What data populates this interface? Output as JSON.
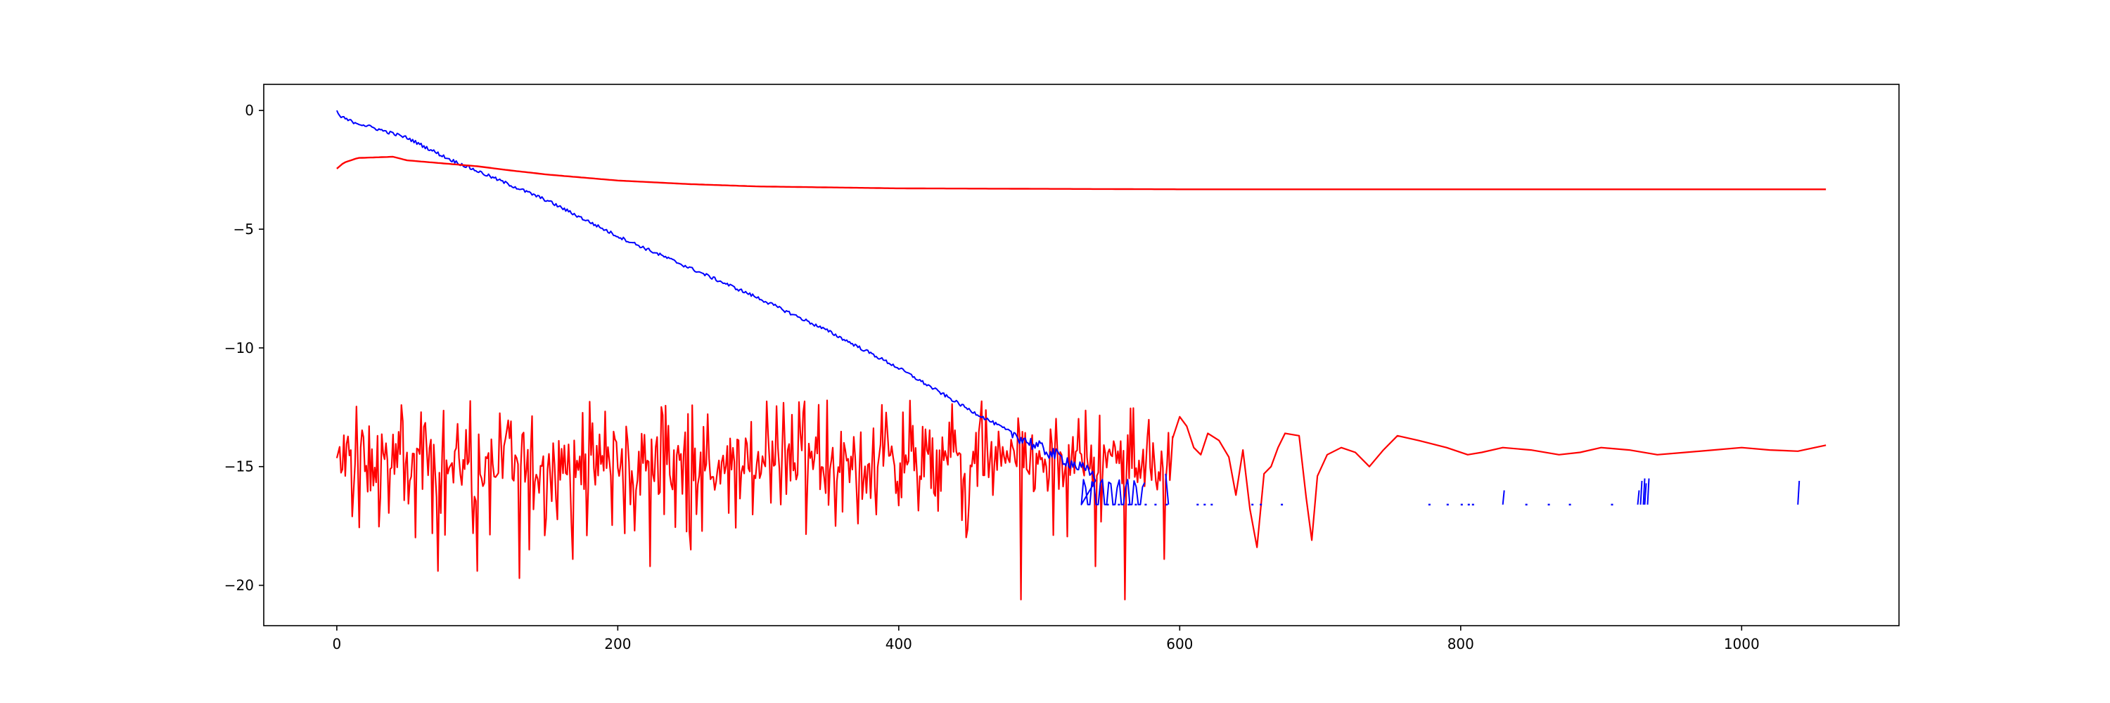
{
  "chart_data": {
    "type": "line",
    "title": "",
    "xlabel": "",
    "ylabel": "",
    "xlim": [
      -52,
      1112
    ],
    "ylim": [
      -21.7,
      1.1
    ],
    "x_ticks": [
      0,
      200,
      400,
      600,
      800,
      1000
    ],
    "y_ticks": [
      0,
      -5,
      -10,
      -15,
      -20
    ],
    "x_tick_labels": [
      "0",
      "200",
      "400",
      "600",
      "800",
      "1000"
    ],
    "y_tick_labels": [
      "0",
      "−5",
      "−10",
      "−15",
      "−20"
    ],
    "grid": false,
    "series": [
      {
        "color": "#0000ff",
        "description_points": [
          [
            0,
            0
          ],
          [
            2,
            -0.25
          ],
          [
            10,
            -0.45
          ],
          [
            30,
            -0.8
          ],
          [
            50,
            -1.15
          ],
          [
            80,
            -2.05
          ],
          [
            100,
            -2.55
          ],
          [
            150,
            -3.8
          ],
          [
            200,
            -5.3
          ],
          [
            250,
            -6.6
          ],
          [
            300,
            -7.9
          ],
          [
            350,
            -9.3
          ],
          [
            400,
            -10.85
          ],
          [
            450,
            -12.6
          ],
          [
            500,
            -14.2
          ],
          [
            520,
            -14.75
          ],
          [
            540,
            -15.4
          ]
        ],
        "floor": -16.6,
        "floor_points": [
          548,
          552,
          556,
          563,
          568,
          575,
          582,
          590,
          612,
          617,
          622,
          651,
          657,
          672,
          777,
          790,
          800,
          805,
          808,
          846,
          862,
          877,
          907
        ],
        "spikes": [
          [
            830,
            -16.0
          ],
          [
            926,
            -16.0
          ],
          [
            928,
            -15.6
          ],
          [
            930,
            -15.5
          ],
          [
            931,
            -15.7
          ],
          [
            933,
            -15.5
          ],
          [
            1040,
            -15.6
          ]
        ]
      },
      {
        "color": "#ff0000",
        "description_points": [
          [
            0,
            -2.45
          ],
          [
            5,
            -2.2
          ],
          [
            15,
            -2.0
          ],
          [
            40,
            -1.95
          ],
          [
            50,
            -2.1
          ],
          [
            80,
            -2.25
          ],
          [
            100,
            -2.35
          ],
          [
            120,
            -2.5
          ],
          [
            150,
            -2.7
          ],
          [
            200,
            -2.95
          ],
          [
            250,
            -3.1
          ],
          [
            300,
            -3.2
          ],
          [
            400,
            -3.28
          ],
          [
            500,
            -3.3
          ],
          [
            600,
            -3.32
          ],
          [
            800,
            -3.32
          ],
          [
            1060,
            -3.32
          ]
        ]
      },
      {
        "color": "#ff0000",
        "noisy_until": 595,
        "noise_center": -14.8,
        "noise_spread": 1.6,
        "spikes_down": [
          [
            72,
            -19.4
          ],
          [
            100,
            -19.4
          ],
          [
            130,
            -19.7
          ],
          [
            137,
            -18.5
          ],
          [
            168,
            -18.9
          ],
          [
            178,
            -17.9
          ],
          [
            212,
            -17.7
          ],
          [
            223,
            -19.2
          ],
          [
            252,
            -18.5
          ],
          [
            487,
            -20.6
          ],
          [
            540,
            -19.2
          ],
          [
            561,
            -20.6
          ],
          [
            589,
            -18.9
          ]
        ],
        "smooth_points": [
          [
            595,
            -13.8
          ],
          [
            600,
            -12.9
          ],
          [
            605,
            -13.3
          ],
          [
            610,
            -14.2
          ],
          [
            615,
            -14.5
          ],
          [
            620,
            -13.6
          ],
          [
            628,
            -13.9
          ],
          [
            635,
            -14.6
          ],
          [
            640,
            -16.2
          ],
          [
            645,
            -14.3
          ],
          [
            650,
            -16.8
          ],
          [
            655,
            -18.4
          ],
          [
            660,
            -15.3
          ],
          [
            665,
            -15.0
          ],
          [
            670,
            -14.2
          ],
          [
            675,
            -13.6
          ],
          [
            685,
            -13.7
          ],
          [
            690,
            -16.3
          ],
          [
            694,
            -18.1
          ],
          [
            698,
            -15.4
          ],
          [
            705,
            -14.5
          ],
          [
            715,
            -14.2
          ],
          [
            725,
            -14.4
          ],
          [
            735,
            -15.0
          ],
          [
            745,
            -14.3
          ],
          [
            755,
            -13.7
          ],
          [
            770,
            -13.9
          ],
          [
            790,
            -14.2
          ],
          [
            805,
            -14.5
          ],
          [
            815,
            -14.4
          ],
          [
            830,
            -14.2
          ],
          [
            850,
            -14.3
          ],
          [
            870,
            -14.5
          ],
          [
            885,
            -14.4
          ],
          [
            900,
            -14.2
          ],
          [
            920,
            -14.3
          ],
          [
            940,
            -14.5
          ],
          [
            960,
            -14.4
          ],
          [
            980,
            -14.3
          ],
          [
            1000,
            -14.2
          ],
          [
            1020,
            -14.3
          ],
          [
            1040,
            -14.35
          ],
          [
            1060,
            -14.1
          ]
        ]
      }
    ]
  }
}
